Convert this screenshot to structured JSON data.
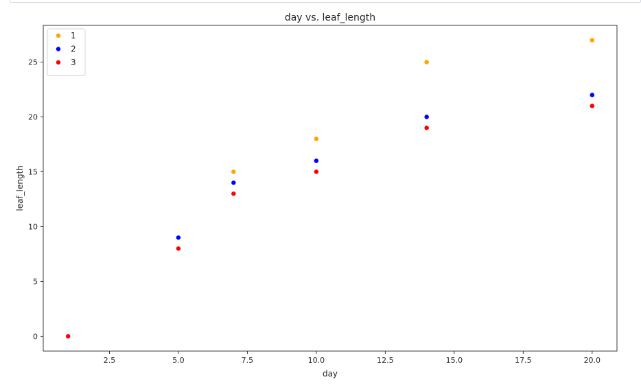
{
  "chart_data": {
    "type": "scatter",
    "title": "day vs. leaf_length",
    "xlabel": "day",
    "ylabel": "leaf_length",
    "xlim": [
      0.1,
      20.9
    ],
    "ylim": [
      -1.35,
      28.35
    ],
    "xticks": [
      2.5,
      5.0,
      7.5,
      10.0,
      12.5,
      15.0,
      17.5,
      20.0
    ],
    "xtick_labels": [
      "2.5",
      "5.0",
      "7.5",
      "10.0",
      "12.5",
      "15.0",
      "17.5",
      "20.0"
    ],
    "yticks": [
      0,
      5,
      10,
      15,
      20,
      25
    ],
    "ytick_labels": [
      "0",
      "5",
      "10",
      "15",
      "20",
      "25"
    ],
    "grid": false,
    "legend_position": "top-left",
    "series": [
      {
        "name": "1",
        "color": "#ffa500",
        "points": [
          [
            1,
            0
          ],
          [
            7,
            15
          ],
          [
            10,
            18
          ],
          [
            14,
            25
          ],
          [
            20,
            27
          ]
        ]
      },
      {
        "name": "2",
        "color": "#0000ff",
        "points": [
          [
            1,
            0
          ],
          [
            5,
            9
          ],
          [
            7,
            14
          ],
          [
            10,
            16
          ],
          [
            14,
            20
          ],
          [
            20,
            22
          ]
        ]
      },
      {
        "name": "3",
        "color": "#ff0000",
        "points": [
          [
            1,
            0
          ],
          [
            5,
            8
          ],
          [
            7,
            13
          ],
          [
            10,
            15
          ],
          [
            14,
            19
          ],
          [
            20,
            21
          ]
        ]
      }
    ]
  }
}
